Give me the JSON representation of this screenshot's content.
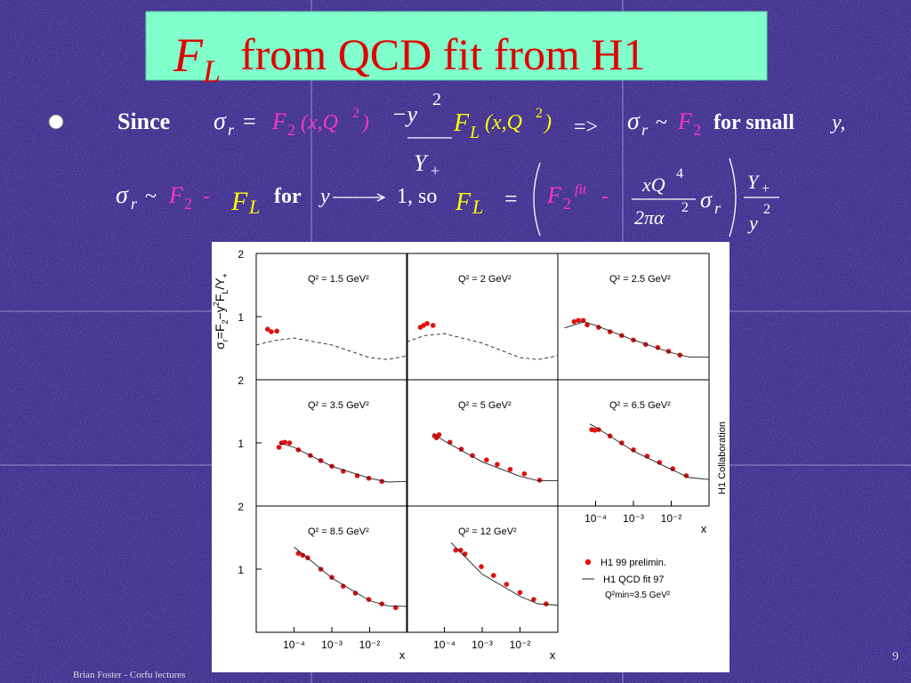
{
  "slide": {
    "title": [
      "F",
      "L",
      "from QCD fit from H1"
    ],
    "line1": [
      "Since",
      "σ",
      "r",
      "=",
      "F",
      "2",
      "(x,Q",
      "2",
      ")",
      "−y",
      "2",
      "Y",
      "+",
      "F",
      "L",
      "(x,Q",
      "2",
      ")",
      "=>",
      "σ",
      "r",
      "~",
      "F",
      "2",
      "for small",
      "y,"
    ],
    "line2": [
      "σ",
      "r",
      "~",
      "F",
      "2",
      "-",
      "F",
      "L",
      "for",
      "y",
      "1, so",
      "F",
      "L",
      "=",
      "F",
      "2",
      "fit",
      "-",
      "xQ",
      "4",
      "2πα",
      "2",
      "σ",
      "r",
      "Y",
      "+",
      "y",
      "2"
    ],
    "footer": "Brian Foster - Corfu lectures",
    "page_number": "9"
  },
  "figure": {
    "y_label": [
      "σ",
      "r",
      "=F",
      "2",
      "−y",
      "2",
      "F",
      "L",
      "/Y",
      "+"
    ],
    "collaboration": "H1 Collaboration",
    "legend_note": "Q²min=3.5 GeV²"
  },
  "chart_data": [
    {
      "type": "scatter",
      "title": "Q² = 1.5 GeV²",
      "xscale": "log",
      "xlim": [
        1e-05,
        0.1
      ],
      "ylim": [
        0,
        2
      ],
      "yticks": [
        1,
        2
      ],
      "series": [
        {
          "name": "H1 99 prelimin.",
          "color": "#e01010",
          "mode": "markers",
          "x": [
            2e-05,
            2.5e-05,
            3.5e-05
          ],
          "values": [
            0.8,
            0.76,
            0.77
          ]
        },
        {
          "name": "H1 QCD fit 97",
          "color": "#222222",
          "mode": "line",
          "line_style": "dashed",
          "x": [
            1e-05,
            3e-05,
            0.0001,
            0.001,
            0.01,
            0.03,
            0.1
          ],
          "values": [
            0.55,
            0.62,
            0.66,
            0.55,
            0.35,
            0.32,
            0.38
          ]
        }
      ]
    },
    {
      "type": "scatter",
      "title": "Q² = 2 GeV²",
      "xscale": "log",
      "xlim": [
        1e-05,
        0.1
      ],
      "ylim": [
        0,
        2
      ],
      "series": [
        {
          "name": "H1 99 prelimin.",
          "color": "#e01010",
          "mode": "markers",
          "x": [
            2.3e-05,
            2.8e-05,
            3.5e-05,
            5e-05
          ],
          "values": [
            0.83,
            0.86,
            0.89,
            0.86
          ]
        },
        {
          "name": "H1 QCD fit 97",
          "color": "#222222",
          "mode": "line",
          "line_style": "dashed",
          "x": [
            1e-05,
            3e-05,
            0.0001,
            0.001,
            0.01,
            0.03,
            0.1
          ],
          "values": [
            0.6,
            0.7,
            0.73,
            0.58,
            0.35,
            0.32,
            0.38
          ]
        }
      ]
    },
    {
      "type": "scatter",
      "title": "Q² = 2.5 GeV²",
      "xscale": "log",
      "xlim": [
        1e-05,
        0.1
      ],
      "ylim": [
        0,
        2
      ],
      "series": [
        {
          "name": "H1 99 prelimin.",
          "color": "#e01010",
          "mode": "markers",
          "x": [
            2.7e-05,
            3.5e-05,
            4.7e-05,
            6e-05,
            0.00012,
            0.00024,
            0.00049,
            0.001,
            0.0021,
            0.0044,
            0.0085,
            0.017
          ],
          "values": [
            0.92,
            0.94,
            0.94,
            0.87,
            0.83,
            0.76,
            0.7,
            0.63,
            0.56,
            0.51,
            0.45,
            0.39
          ]
        },
        {
          "name": "H1 QCD fit 97",
          "color": "#222222",
          "mode": "line",
          "line_style": "solid",
          "x": [
            1.5e-05,
            5e-05,
            0.0001,
            0.001,
            0.01,
            0.03,
            0.1
          ],
          "values": [
            0.82,
            0.92,
            0.86,
            0.63,
            0.43,
            0.36,
            0.36
          ]
        }
      ]
    },
    {
      "type": "scatter",
      "title": "Q² = 3.5 GeV²",
      "xscale": "log",
      "xlim": [
        1e-05,
        0.1
      ],
      "ylim": [
        0,
        2
      ],
      "yticks": [
        1,
        2
      ],
      "series": [
        {
          "name": "H1 99 prelimin.",
          "color": "#e01010",
          "mode": "markers",
          "x": [
            4e-05,
            4.7e-05,
            5.7e-05,
            7.6e-05,
            0.00013,
            0.00027,
            0.00051,
            0.001,
            0.002,
            0.0047,
            0.0095,
            0.021
          ],
          "values": [
            0.93,
            1.0,
            1.01,
            1.0,
            0.89,
            0.8,
            0.72,
            0.63,
            0.55,
            0.48,
            0.44,
            0.39
          ]
        },
        {
          "name": "H1 QCD fit 97",
          "color": "#222222",
          "mode": "line",
          "line_style": "solid",
          "x": [
            4e-05,
            0.0001,
            0.001,
            0.01,
            0.03,
            0.1
          ],
          "values": [
            1.0,
            0.93,
            0.63,
            0.44,
            0.38,
            0.39
          ]
        }
      ]
    },
    {
      "type": "scatter",
      "title": "Q² = 5 GeV²",
      "xscale": "log",
      "xlim": [
        1e-05,
        0.1
      ],
      "ylim": [
        0,
        2
      ],
      "series": [
        {
          "name": "H1 99 prelimin.",
          "color": "#e01010",
          "mode": "markers",
          "x": [
            5.5e-05,
            6.2e-05,
            7.2e-05,
            0.00014,
            0.00028,
            0.00055,
            0.0013,
            0.0025,
            0.0055,
            0.013,
            0.033
          ],
          "values": [
            1.11,
            1.08,
            1.13,
            1.01,
            0.9,
            0.8,
            0.73,
            0.66,
            0.58,
            0.51,
            0.41
          ]
        },
        {
          "name": "H1 QCD fit 97",
          "color": "#222222",
          "mode": "line",
          "line_style": "solid",
          "x": [
            5e-05,
            0.0001,
            0.001,
            0.01,
            0.03,
            0.1
          ],
          "values": [
            1.15,
            1.03,
            0.7,
            0.47,
            0.4,
            0.4
          ]
        }
      ]
    },
    {
      "type": "scatter",
      "title": "Q² = 6.5 GeV²",
      "xscale": "log",
      "xlim": [
        1e-05,
        0.1
      ],
      "ylim": [
        0,
        2
      ],
      "xlabel": "x",
      "xticks": [
        {
          "value": 0.0001,
          "label": "10⁻⁴"
        },
        {
          "value": 0.001,
          "label": "10⁻³"
        },
        {
          "value": 0.01,
          "label": "10⁻²"
        }
      ],
      "series": [
        {
          "name": "H1 99 prelimin.",
          "color": "#e01010",
          "mode": "markers",
          "x": [
            7.9e-05,
            9.5e-05,
            0.00012,
            0.00024,
            0.00049,
            0.001,
            0.0023,
            0.0049,
            0.011,
            0.025
          ],
          "values": [
            1.21,
            1.2,
            1.21,
            1.11,
            1.0,
            0.89,
            0.79,
            0.69,
            0.59,
            0.48
          ]
        },
        {
          "name": "H1 QCD fit 97",
          "color": "#222222",
          "mode": "line",
          "line_style": "solid",
          "x": [
            7e-05,
            0.0001,
            0.001,
            0.01,
            0.03,
            0.1
          ],
          "values": [
            1.3,
            1.25,
            0.87,
            0.58,
            0.45,
            0.42
          ]
        }
      ]
    },
    {
      "type": "scatter",
      "title": "Q² = 8.5 GeV²",
      "xscale": "log",
      "xlim": [
        1e-05,
        0.1
      ],
      "ylim": [
        0,
        2
      ],
      "yticks": [
        1,
        2
      ],
      "xlabel": "x",
      "xticks": [
        {
          "value": 0.0001,
          "label": "10⁻⁴"
        },
        {
          "value": 0.001,
          "label": "10⁻³"
        },
        {
          "value": 0.01,
          "label": "10⁻²"
        }
      ],
      "series": [
        {
          "name": "H1 99 prelimin.",
          "color": "#e01010",
          "mode": "markers",
          "x": [
            0.00013,
            0.00017,
            0.00023,
            0.00051,
            0.001,
            0.002,
            0.0042,
            0.0095,
            0.021,
            0.049
          ],
          "values": [
            1.25,
            1.22,
            1.18,
            1.0,
            0.87,
            0.73,
            0.62,
            0.52,
            0.45,
            0.39
          ]
        },
        {
          "name": "H1 QCD fit 97",
          "color": "#222222",
          "mode": "line",
          "line_style": "solid",
          "x": [
            0.0001,
            0.0003,
            0.001,
            0.01,
            0.03,
            0.1
          ],
          "values": [
            1.35,
            1.12,
            0.86,
            0.5,
            0.42,
            0.41
          ]
        }
      ]
    },
    {
      "type": "scatter",
      "title": "Q² = 12 GeV²",
      "xscale": "log",
      "xlim": [
        1e-05,
        0.1
      ],
      "ylim": [
        0,
        2
      ],
      "xlabel": "x",
      "xticks": [
        {
          "value": 0.0001,
          "label": "10⁻⁴"
        },
        {
          "value": 0.001,
          "label": "10⁻³"
        },
        {
          "value": 0.01,
          "label": "10⁻²"
        }
      ],
      "series": [
        {
          "name": "H1 99 prelimin.",
          "color": "#e01010",
          "mode": "markers",
          "x": [
            0.0002,
            0.00027,
            0.00035,
            0.00095,
            0.002,
            0.0044,
            0.01,
            0.023,
            0.049
          ],
          "values": [
            1.3,
            1.3,
            1.24,
            1.04,
            0.9,
            0.76,
            0.63,
            0.52,
            0.45
          ]
        },
        {
          "name": "H1 QCD fit 97",
          "color": "#222222",
          "mode": "line",
          "line_style": "solid",
          "x": [
            0.00015,
            0.0003,
            0.001,
            0.01,
            0.03,
            0.1
          ],
          "values": [
            1.42,
            1.24,
            0.92,
            0.57,
            0.45,
            0.43
          ]
        }
      ]
    }
  ]
}
